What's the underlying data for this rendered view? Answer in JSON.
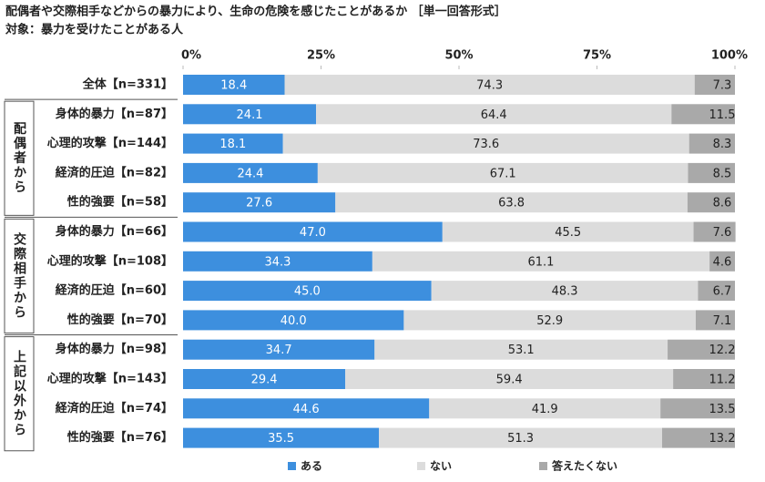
{
  "chart_data": {
    "type": "stacked_bar_horizontal",
    "title": "配偶者や交際相手などからの暴力により、生命の危険を感じたことがあるか ［単一回答形式］",
    "subtitle": "対象：暴力を受けたことがある人",
    "categories": [
      "全体【n=331】",
      "身体的暴力【n=87】",
      "心理的攻撃【n=144】",
      "経済的圧迫【n=82】",
      "性的強要【n=58】",
      "身体的暴力【n=66】",
      "心理的攻撃【n=108】",
      "経済的圧迫【n=60】",
      "性的強要【n=70】",
      "身体的暴力【n=98】",
      "心理的攻撃【n=143】",
      "経済的圧迫【n=74】",
      "性的強要【n=76】"
    ],
    "groups": [
      {
        "label": "配偶者から",
        "from": 1,
        "to": 4
      },
      {
        "label": "交際相手から",
        "from": 5,
        "to": 8
      },
      {
        "label": "上記以外から",
        "from": 9,
        "to": 12
      }
    ],
    "series": [
      {
        "name": "ある",
        "color": "#3d8fde",
        "values": [
          18.4,
          24.1,
          18.1,
          24.4,
          27.6,
          47.0,
          34.3,
          45.0,
          40.0,
          34.7,
          29.4,
          44.6,
          35.5
        ],
        "value_labels": [
          "18.4",
          "24.1",
          "18.1",
          "24.4",
          "27.6",
          "47.0",
          "34.3",
          "45.0",
          "40.0",
          "34.7",
          "29.4",
          "44.6",
          "35.5"
        ]
      },
      {
        "name": "ない",
        "color": "#dcdcdc",
        "values": [
          74.3,
          64.4,
          73.6,
          67.1,
          63.8,
          45.5,
          61.1,
          48.3,
          52.9,
          53.1,
          59.4,
          41.9,
          51.3
        ],
        "value_labels": [
          "74.3",
          "64.4",
          "73.6",
          "67.1",
          "63.8",
          "45.5",
          "61.1",
          "48.3",
          "52.9",
          "53.1",
          "59.4",
          "41.9",
          "51.3"
        ]
      },
      {
        "name": "答えたくない",
        "color": "#a9a9a9",
        "values": [
          7.3,
          11.5,
          8.3,
          8.5,
          8.6,
          7.6,
          4.6,
          6.7,
          7.1,
          12.2,
          11.2,
          13.5,
          13.2
        ],
        "value_labels": [
          "7.3",
          "11.5",
          "8.3",
          "8.5",
          "8.6",
          "7.6",
          "4.6",
          "6.7",
          "7.1",
          "12.2",
          "11.2",
          "13.5",
          "13.2"
        ]
      }
    ],
    "xlim": [
      0,
      100
    ],
    "xticks": [
      {
        "value": 0,
        "label": "0%"
      },
      {
        "value": 25,
        "label": "25%"
      },
      {
        "value": 50,
        "label": "50%"
      },
      {
        "value": 75,
        "label": "75%"
      },
      {
        "value": 100,
        "label": "100%"
      }
    ]
  }
}
